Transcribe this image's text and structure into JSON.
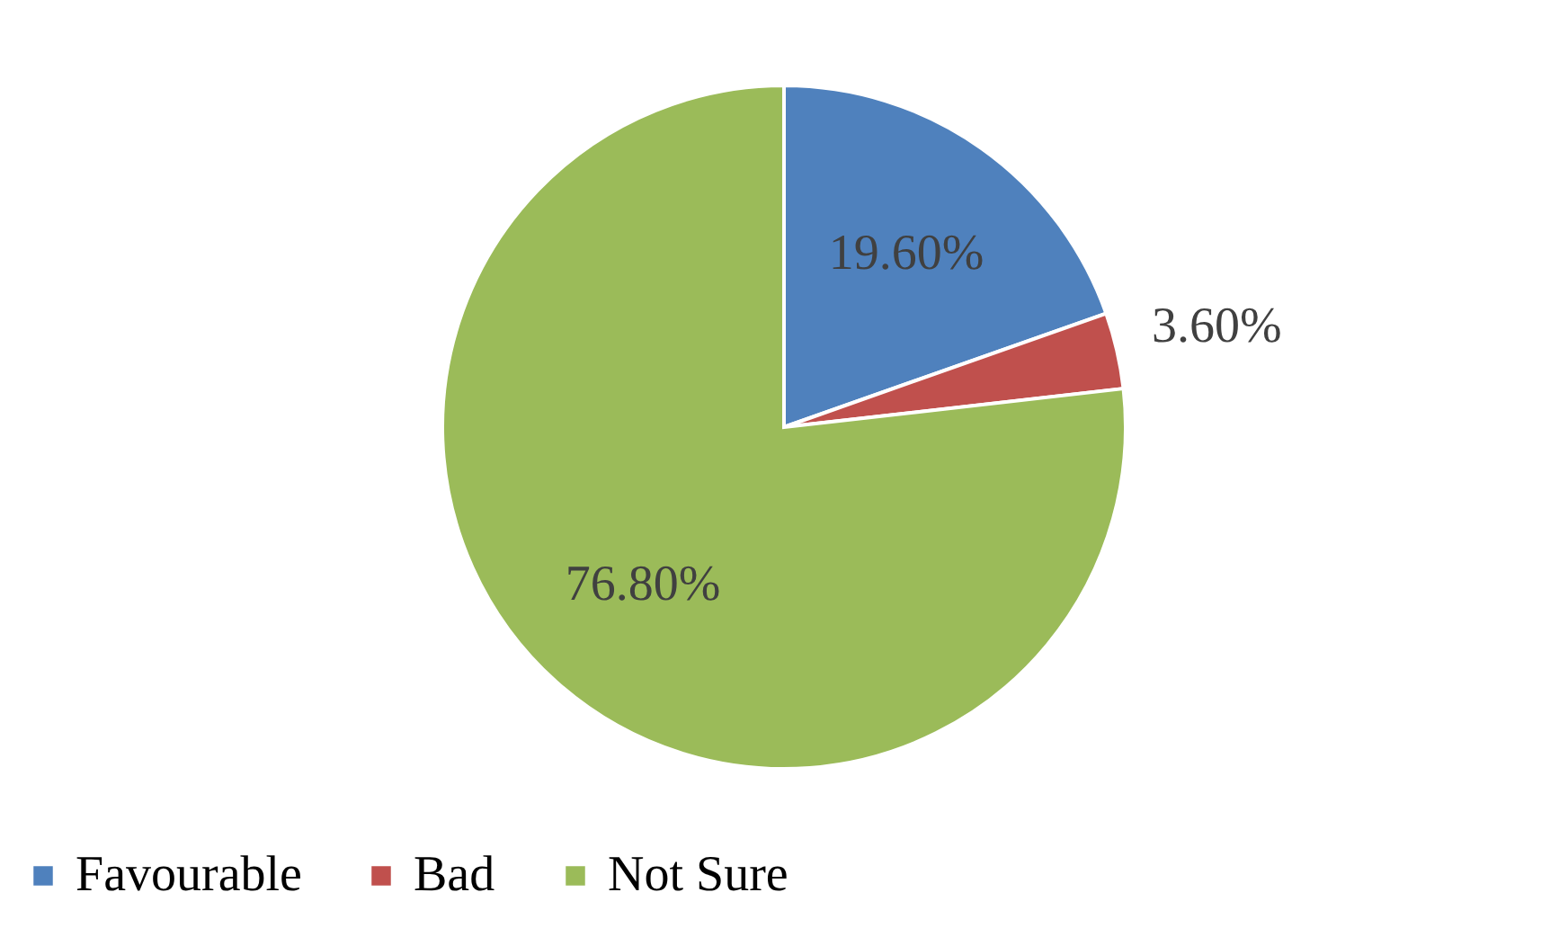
{
  "chart_data": {
    "type": "pie",
    "categories": [
      "Favourable",
      "Bad",
      "Not Sure"
    ],
    "values": [
      19.6,
      3.6,
      76.8
    ],
    "colors": [
      "#4f81bd",
      "#c0504d",
      "#9bbb59"
    ],
    "value_labels": [
      "19.60%",
      "3.60%",
      "76.80%"
    ],
    "legend": "bottom"
  }
}
